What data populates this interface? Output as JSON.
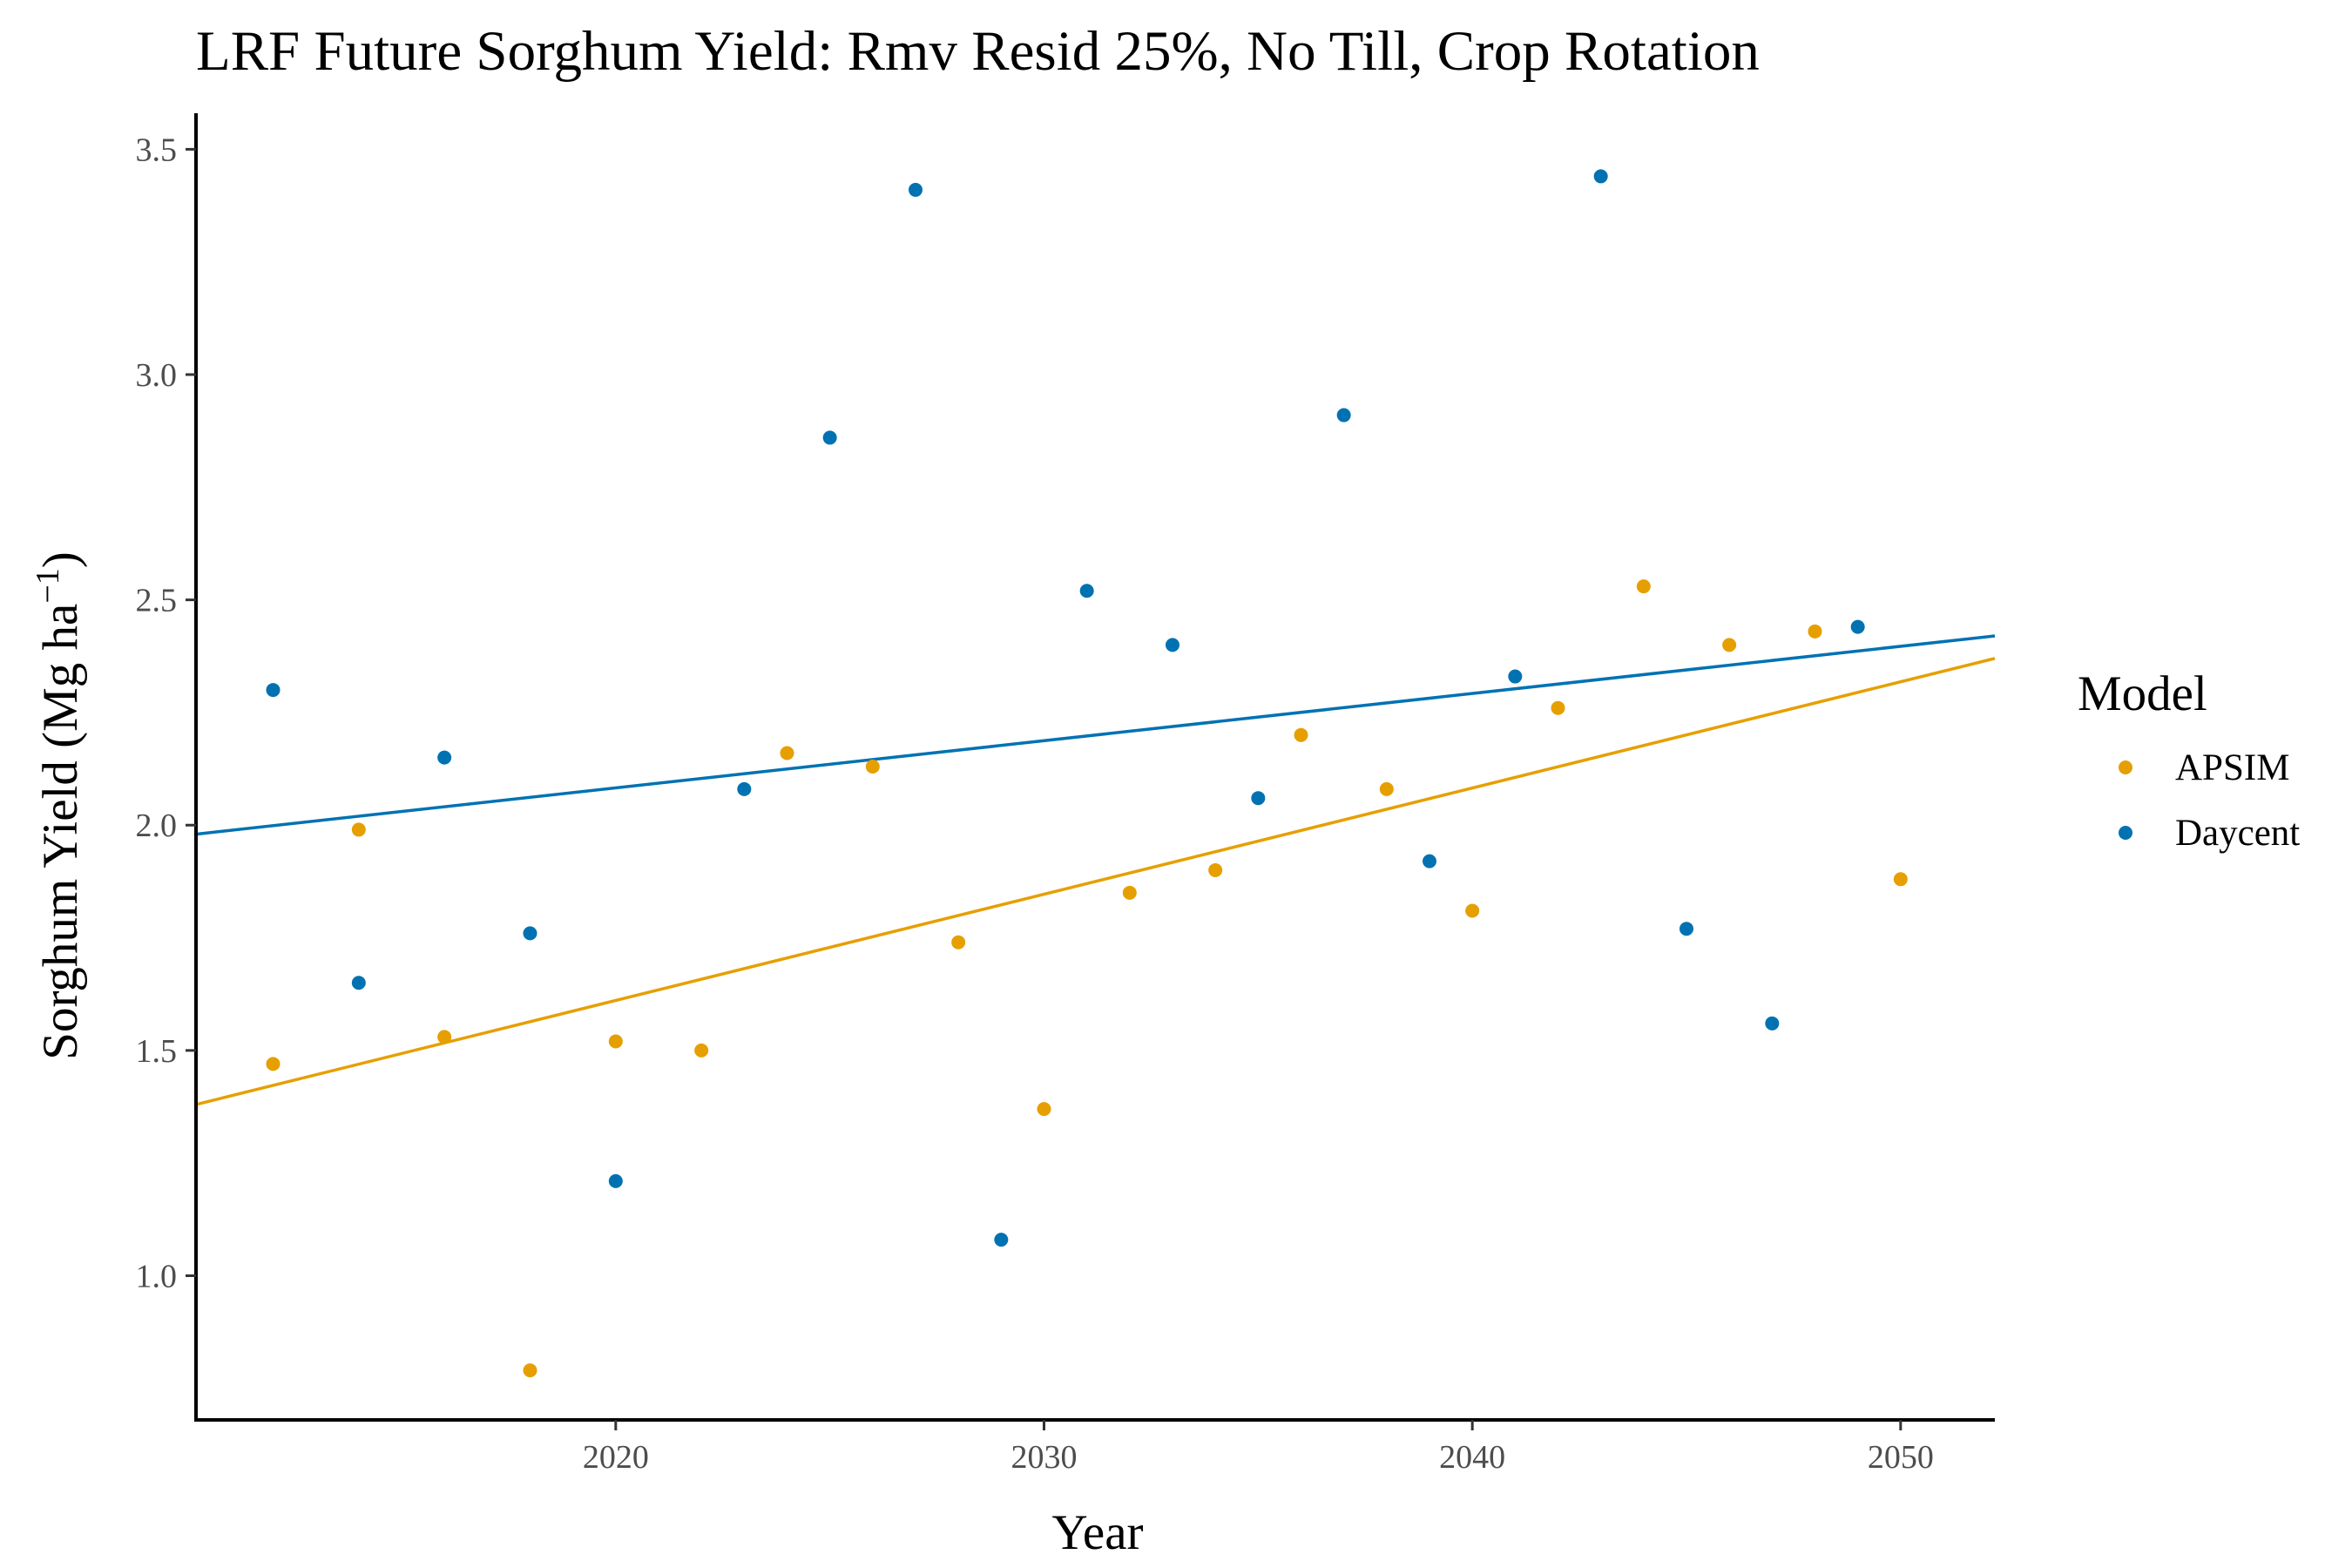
{
  "chart_data": {
    "type": "scatter",
    "title": "LRF Future Sorghum Yield:  Rmv Resid 25%, No Till, Crop Rotation",
    "xlabel": "Year",
    "ylabel": "Sorghum Yield (Mg ha",
    "ylabel_sup": "−1",
    "ylabel_end": ")",
    "xlim": [
      2010.2,
      2052.2
    ],
    "ylim": [
      0.68,
      3.58
    ],
    "x_ticks": [
      2020,
      2030,
      2040,
      2050
    ],
    "x_tick_labels": [
      "2020",
      "2030",
      "2040",
      "2050"
    ],
    "y_ticks": [
      1.0,
      1.5,
      2.0,
      2.5,
      3.0,
      3.5
    ],
    "y_tick_labels": [
      "1.0",
      "1.5",
      "2.0",
      "2.5",
      "3.0",
      "3.5"
    ],
    "grid": false,
    "legend": {
      "title": "Model",
      "position": "right"
    },
    "series": [
      {
        "name": "APSIM",
        "color": "#E69F00",
        "points": [
          [
            2012,
            1.47
          ],
          [
            2014,
            1.99
          ],
          [
            2016,
            1.53
          ],
          [
            2018,
            0.79
          ],
          [
            2020,
            1.52
          ],
          [
            2022,
            1.5
          ],
          [
            2024,
            2.16
          ],
          [
            2026,
            2.13
          ],
          [
            2028,
            1.74
          ],
          [
            2030,
            1.37
          ],
          [
            2032,
            1.85
          ],
          [
            2034,
            1.9
          ],
          [
            2036,
            2.2
          ],
          [
            2038,
            2.08
          ],
          [
            2040,
            1.81
          ],
          [
            2042,
            2.26
          ],
          [
            2044,
            2.53
          ],
          [
            2046,
            2.4
          ],
          [
            2048,
            2.43
          ],
          [
            2050,
            1.88
          ]
        ],
        "trend": {
          "x": [
            2010.2,
            2052.2
          ],
          "y": [
            1.38,
            2.37
          ]
        }
      },
      {
        "name": "Daycent",
        "color": "#0072B2",
        "points": [
          [
            2012,
            2.3
          ],
          [
            2014,
            1.65
          ],
          [
            2016,
            2.15
          ],
          [
            2018,
            1.76
          ],
          [
            2020,
            1.21
          ],
          [
            2023,
            2.08
          ],
          [
            2025,
            2.86
          ],
          [
            2027,
            3.41
          ],
          [
            2029,
            1.08
          ],
          [
            2031,
            2.52
          ],
          [
            2033,
            2.4
          ],
          [
            2035,
            2.06
          ],
          [
            2037,
            2.91
          ],
          [
            2039,
            1.92
          ],
          [
            2041,
            2.33
          ],
          [
            2043,
            3.44
          ],
          [
            2045,
            1.77
          ],
          [
            2047,
            1.56
          ],
          [
            2049,
            2.44
          ]
        ],
        "trend": {
          "x": [
            2010.2,
            2052.2
          ],
          "y": [
            1.98,
            2.42
          ]
        }
      }
    ]
  }
}
